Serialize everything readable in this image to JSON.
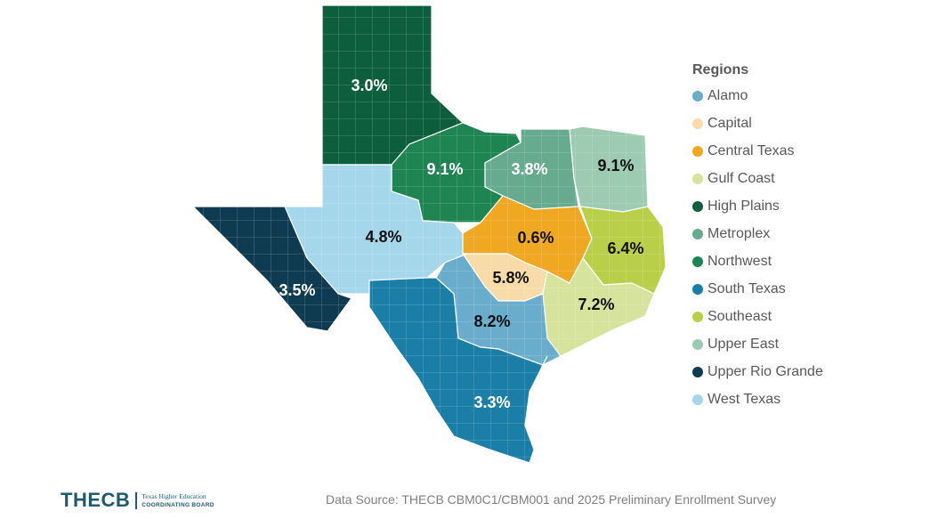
{
  "legend": {
    "title": "Regions",
    "items": [
      {
        "label": "Alamo",
        "color": "#6aaccb"
      },
      {
        "label": "Capital",
        "color": "#f8dba8"
      },
      {
        "label": "Central Texas",
        "color": "#f0a722"
      },
      {
        "label": "Gulf Coast",
        "color": "#d6e39c"
      },
      {
        "label": "High Plains",
        "color": "#0c5e3c"
      },
      {
        "label": "Metroplex",
        "color": "#66aa90"
      },
      {
        "label": "Northwest",
        "color": "#1d8452"
      },
      {
        "label": "South Texas",
        "color": "#1b7ea6"
      },
      {
        "label": "Southeast",
        "color": "#b9cf4a"
      },
      {
        "label": "Upper East",
        "color": "#9ccbb1"
      },
      {
        "label": "Upper Rio Grande",
        "color": "#0f3b52"
      },
      {
        "label": "West Texas",
        "color": "#a5d7ec"
      }
    ]
  },
  "regions": [
    {
      "name": "High Plains",
      "value": "3.0%"
    },
    {
      "name": "Northwest",
      "value": "9.1%"
    },
    {
      "name": "Metroplex",
      "value": "3.8%"
    },
    {
      "name": "Upper East",
      "value": "9.1%"
    },
    {
      "name": "West Texas",
      "value": "4.8%"
    },
    {
      "name": "Upper Rio Grande",
      "value": "3.5%"
    },
    {
      "name": "Central Texas",
      "value": "0.6%"
    },
    {
      "name": "Capital",
      "value": "5.8%"
    },
    {
      "name": "Southeast",
      "value": "6.4%"
    },
    {
      "name": "Gulf Coast",
      "value": "7.2%"
    },
    {
      "name": "Alamo",
      "value": "8.2%"
    },
    {
      "name": "South Texas",
      "value": "3.3%"
    }
  ],
  "footer": {
    "logo_text": "THECB",
    "logo_sub1": "Texas Higher Education",
    "logo_sub2": "COORDINATING BOARD",
    "source": "Data Source: THECB CBM0C1/CBM001 and 2025 Preliminary Enrollment Survey"
  }
}
